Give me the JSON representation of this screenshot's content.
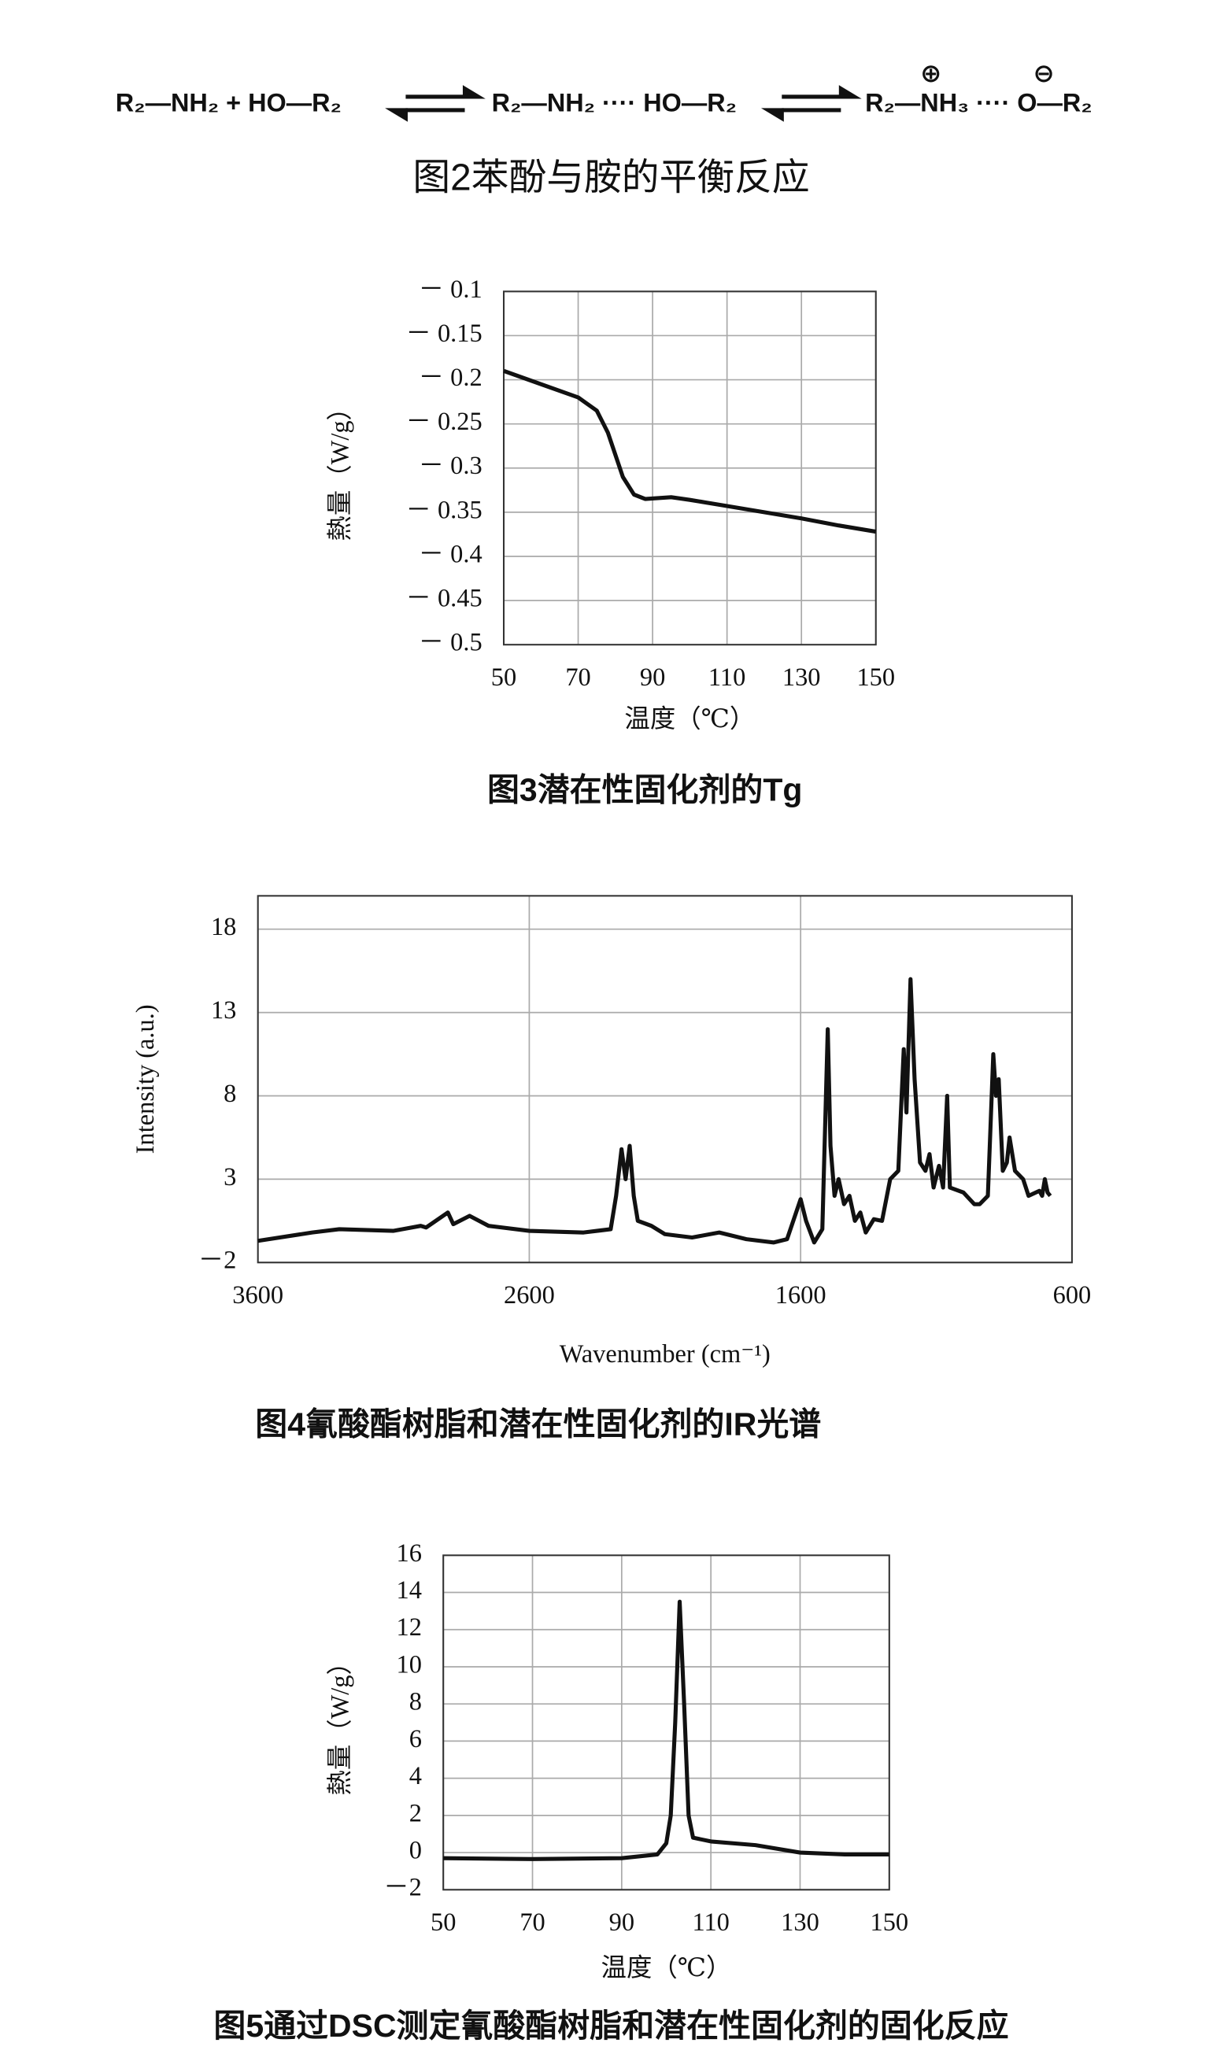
{
  "equation": {
    "left": "R₂—NH₂ + HO—R₂",
    "middle": "R₂—NH₂ ···· HO—R₂",
    "right": "R₂—NH₃ ···· O—R₂",
    "cation_charge": "⊕",
    "anion_charge": "⊖",
    "caption": "图2苯酚与胺的平衡反应"
  },
  "chart_data": [
    {
      "type": "line",
      "caption": "图3潜在性固化剂的Tg",
      "xlabel": "温度（℃）",
      "ylabel": "熱量（W/g）",
      "x": [
        50,
        60,
        70,
        75,
        78,
        80,
        82,
        85,
        88,
        95,
        100,
        110,
        120,
        130,
        140,
        150
      ],
      "series": [
        {
          "name": "Tg",
          "color": "#111111",
          "values": [
            -0.19,
            -0.205,
            -0.22,
            -0.235,
            -0.26,
            -0.285,
            -0.31,
            -0.33,
            -0.335,
            -0.333,
            -0.336,
            -0.343,
            -0.35,
            -0.357,
            -0.365,
            -0.372
          ]
        }
      ],
      "xlim": [
        50,
        150
      ],
      "xticks": [
        50,
        70,
        90,
        110,
        130,
        150
      ],
      "ylim": [
        -0.5,
        -0.1
      ],
      "yticks": [
        {
          "value": -0.1,
          "label": "－ 0.1"
        },
        {
          "value": -0.15,
          "label": "－ 0.15"
        },
        {
          "value": -0.2,
          "label": "－ 0.2"
        },
        {
          "value": -0.25,
          "label": "－ 0.25"
        },
        {
          "value": -0.3,
          "label": "－ 0.3"
        },
        {
          "value": -0.35,
          "label": "－ 0.35"
        },
        {
          "value": -0.4,
          "label": "－ 0.4"
        },
        {
          "value": -0.45,
          "label": "－ 0.45"
        },
        {
          "value": -0.5,
          "label": "－ 0.5"
        }
      ],
      "grid": true
    },
    {
      "type": "line",
      "caption": "图4氰酸酯树脂和潜在性固化剂的IR光谱",
      "xlabel": "Wavenumber (cm⁻¹)",
      "ylabel": "Intensity (a.u.)",
      "x": [
        3600,
        3400,
        3300,
        3100,
        3000,
        2980,
        2900,
        2880,
        2820,
        2750,
        2600,
        2400,
        2300,
        2280,
        2260,
        2245,
        2230,
        2215,
        2200,
        2150,
        2100,
        2000,
        1900,
        1800,
        1700,
        1650,
        1600,
        1580,
        1550,
        1520,
        1500,
        1490,
        1475,
        1460,
        1440,
        1420,
        1400,
        1380,
        1360,
        1330,
        1300,
        1270,
        1240,
        1220,
        1210,
        1195,
        1180,
        1160,
        1140,
        1125,
        1110,
        1090,
        1075,
        1060,
        1050,
        1000,
        960,
        940,
        910,
        890,
        880,
        870,
        855,
        840,
        830,
        810,
        780,
        760,
        720,
        710,
        700,
        690,
        680
      ],
      "series": [
        {
          "name": "IR",
          "color": "#111111",
          "values": [
            -0.7,
            -0.2,
            0,
            -0.1,
            0.2,
            0.1,
            1.0,
            0.3,
            0.8,
            0.2,
            -0.1,
            -0.2,
            0,
            2,
            4.8,
            3,
            5,
            2,
            0.5,
            0.2,
            -0.3,
            -0.5,
            -0.2,
            -0.6,
            -0.8,
            -0.6,
            1.8,
            0.5,
            -0.8,
            0,
            12,
            5,
            2,
            3,
            1.5,
            2,
            0.5,
            1,
            -0.2,
            0.6,
            0.5,
            3,
            3.5,
            10.8,
            7,
            15,
            9,
            4,
            3.5,
            4.5,
            2.5,
            3.8,
            2.5,
            8,
            2.5,
            2.2,
            1.5,
            1.5,
            2,
            10.5,
            8,
            9,
            3.5,
            4,
            5.5,
            3.5,
            3,
            2,
            2.3,
            2,
            3,
            2.2,
            2
          ]
        }
      ],
      "xlim": [
        3600,
        600
      ],
      "xticks": [
        3600,
        2600,
        1600,
        600
      ],
      "ylim": [
        -2,
        20
      ],
      "yticks": [
        {
          "value": -2,
          "label": "－2"
        },
        3,
        8,
        13,
        18
      ],
      "grid": true
    },
    {
      "type": "line",
      "caption": "图5通过DSC测定氰酸酯树脂和潜在性固化剂的固化反应",
      "xlabel": "温度（℃）",
      "ylabel": "熱量（W/g）",
      "x": [
        50,
        70,
        90,
        98,
        100,
        101,
        102,
        103,
        104,
        105,
        106,
        110,
        120,
        130,
        140,
        150
      ],
      "series": [
        {
          "name": "DSC",
          "color": "#111111",
          "values": [
            -0.3,
            -0.35,
            -0.3,
            -0.1,
            0.5,
            2,
            7,
            13.5,
            8,
            2,
            0.8,
            0.6,
            0.4,
            0,
            -0.1,
            -0.1
          ]
        }
      ],
      "xlim": [
        50,
        150
      ],
      "xticks": [
        50,
        70,
        90,
        110,
        130,
        150
      ],
      "ylim": [
        -2,
        16
      ],
      "yticks": [
        {
          "value": -2,
          "label": "－2"
        },
        0,
        2,
        4,
        6,
        8,
        10,
        12,
        14,
        16
      ],
      "grid": true
    }
  ]
}
